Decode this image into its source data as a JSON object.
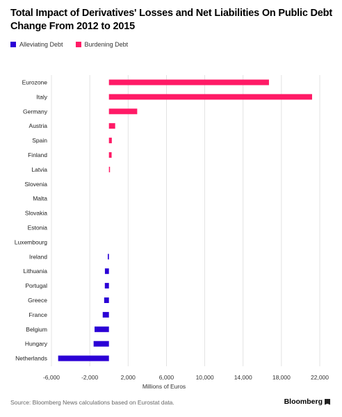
{
  "header": {
    "title": "Total Impact of Derivatives' Losses and Net Liabilities On Public Debt Change From 2012 to 2015"
  },
  "legend": {
    "items": [
      {
        "label": "Alleviating Debt",
        "color": "#2b00d6"
      },
      {
        "label": "Burdening Debt",
        "color": "#ff1a66"
      }
    ]
  },
  "footer": {
    "source": "Source: Bloomberg News calculations based on Eurostat data.",
    "brand": "Bloomberg"
  },
  "chart_data": {
    "type": "bar",
    "orientation": "horizontal",
    "title": "Total Impact of Derivatives' Losses and Net Liabilities On Public Debt Change From 2012 to 2015",
    "xlabel": "Millions of Euros",
    "ylabel": "",
    "xlim": [
      -6000,
      22000
    ],
    "xticks": [
      -6000,
      -2000,
      2000,
      6000,
      10000,
      14000,
      18000,
      22000
    ],
    "xtick_labels": [
      "-6,000",
      "-2,000",
      "2,000",
      "6,000",
      "10,000",
      "14,000",
      "18,000",
      "22,000"
    ],
    "grid": true,
    "legend_position": "top-left",
    "categories": [
      "Eurozone",
      "Italy",
      "Germany",
      "Austria",
      "Spain",
      "Finland",
      "Latvia",
      "Slovenia",
      "Malta",
      "Slovakia",
      "Estonia",
      "Luxembourg",
      "Ireland",
      "Lithuania",
      "Portugal",
      "Greece",
      "France",
      "Belgium",
      "Hungary",
      "Netherlands"
    ],
    "values": [
      16700,
      21200,
      2950,
      650,
      300,
      280,
      60,
      0,
      0,
      0,
      0,
      0,
      -120,
      -420,
      -430,
      -500,
      -650,
      -1500,
      -1600,
      -5300
    ],
    "colors": {
      "positive": "#ff1a66",
      "negative": "#2b00d6"
    }
  }
}
